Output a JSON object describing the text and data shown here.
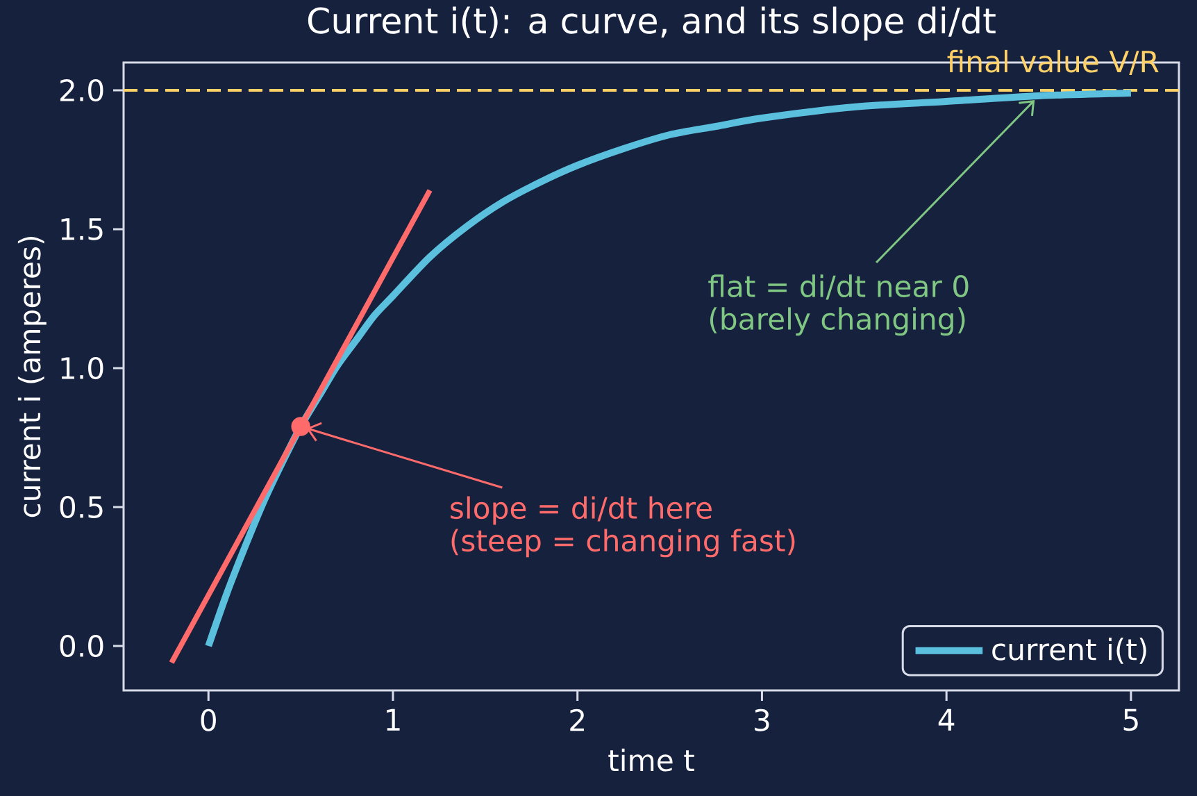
{
  "chart_data": {
    "type": "line",
    "title": "Current i(t): a curve, and its slope di/dt",
    "xlabel": "time t",
    "ylabel": "current i (amperes)",
    "series": [
      {
        "name": "current i(t)",
        "color": "#5bc0de",
        "x": [
          0,
          0.1,
          0.2,
          0.3,
          0.4,
          0.5,
          0.6,
          0.7,
          0.8,
          0.9,
          1.0,
          1.2,
          1.4,
          1.6,
          1.8,
          2.0,
          2.25,
          2.5,
          2.75,
          3.0,
          3.5,
          4.0,
          4.5,
          5.0
        ],
        "values": [
          0,
          0.19,
          0.36,
          0.52,
          0.66,
          0.79,
          0.9,
          1.01,
          1.1,
          1.19,
          1.26,
          1.4,
          1.51,
          1.6,
          1.67,
          1.73,
          1.79,
          1.84,
          1.87,
          1.9,
          1.94,
          1.96,
          1.98,
          1.99
        ]
      },
      {
        "color": "#ff6b6b",
        "x": [
          -0.2,
          1.2
        ],
        "values": [
          -0.06,
          1.64
        ]
      },
      {
        "type": "scatter",
        "color": "#ff6b6b",
        "marker": "circle",
        "x": [
          0.5
        ],
        "values": [
          0.79
        ]
      }
    ],
    "xlim": [
      -0.46,
      5.26
    ],
    "ylim": [
      -0.16,
      2.1
    ],
    "xticks": [
      0,
      1,
      2,
      3,
      4,
      5
    ],
    "yticks": [
      {
        "value": 0,
        "label": "0.0"
      },
      0.5,
      {
        "value": 1,
        "label": "1.0"
      },
      1.5,
      {
        "value": 2,
        "label": "2.0"
      }
    ],
    "ref_lines": [
      {
        "axis": "y",
        "value": 2,
        "label": "final value V/R",
        "color": "#ffd166",
        "line_style": "dashed"
      }
    ],
    "annotations": [
      {
        "text": "slope = di/dt here",
        "x": 0.5,
        "y": 0.79
      },
      "(steep = changing fast)",
      {
        "text": "flat = di/dt near 0",
        "x": 4.5,
        "y": 1.98
      },
      "(barely changing)"
    ],
    "legend": "bottom right"
  }
}
